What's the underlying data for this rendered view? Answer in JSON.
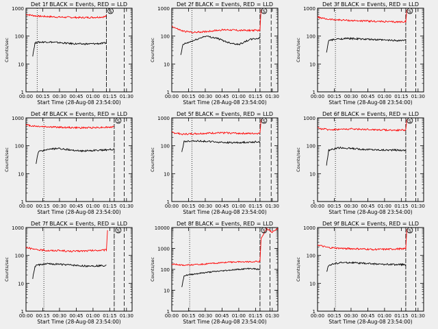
{
  "figure": {
    "xlabel": "Start Time (28-Aug-08 23:54:00)",
    "ylabel": "Counts/sec",
    "xticks": [
      "00:00",
      "00:15",
      "00:30",
      "00:45",
      "01:00",
      "01:15",
      "01:30"
    ],
    "colors": {
      "events": "#000000",
      "lld": "#ff0000",
      "background": "#efefef",
      "axes": "#000000"
    }
  },
  "chart_data": [
    {
      "type": "line",
      "title": "Det 1f BLACK = Events, RED = LLD",
      "log_scale": true,
      "xlim": [
        0,
        95
      ],
      "ylim": [
        1,
        1000
      ],
      "yticks": [
        "1",
        "10",
        "100",
        "1000"
      ],
      "vlines_dotted": [
        10,
        72
      ],
      "vlines_dashed": [
        72,
        88
      ],
      "marker": "S",
      "series": [
        {
          "color": "#ff0000",
          "x": [
            0,
            5,
            10,
            20,
            30,
            40,
            50,
            60,
            70,
            72
          ],
          "y": [
            600,
            560,
            520,
            500,
            480,
            470,
            460,
            470,
            490,
            520
          ]
        },
        {
          "color": "#000000",
          "x": [
            6,
            8,
            10,
            20,
            30,
            40,
            50,
            60,
            70,
            72
          ],
          "y": [
            20,
            55,
            60,
            62,
            58,
            54,
            52,
            53,
            55,
            58
          ]
        }
      ]
    },
    {
      "type": "line",
      "title": "Det 2f BLACK = Events, RED = LLD",
      "log_scale": true,
      "xlim": [
        0,
        95
      ],
      "ylim": [
        1,
        1000
      ],
      "yticks": [
        "1",
        "10",
        "100",
        "1000"
      ],
      "vlines_dotted": [
        18,
        79
      ],
      "vlines_dashed": [
        79,
        89
      ],
      "marker": "S",
      "series": [
        {
          "color": "#ff0000",
          "x": [
            0,
            5,
            10,
            20,
            30,
            40,
            50,
            60,
            70,
            79,
            80
          ],
          "y": [
            230,
            180,
            150,
            135,
            145,
            160,
            170,
            160,
            160,
            160,
            900
          ]
        },
        {
          "color": "#000000",
          "x": [
            8,
            10,
            20,
            30,
            40,
            50,
            60,
            70,
            79
          ],
          "y": [
            20,
            50,
            70,
            100,
            85,
            60,
            50,
            75,
            85
          ]
        }
      ]
    },
    {
      "type": "line",
      "title": "Det 3f BLACK = Events, RED = LLD",
      "log_scale": true,
      "xlim": [
        0,
        95
      ],
      "ylim": [
        1,
        1000
      ],
      "yticks": [
        "1",
        "10",
        "100",
        "1000"
      ],
      "vlines_dotted": [
        16,
        79
      ],
      "vlines_dashed": [
        79,
        88
      ],
      "marker": "S",
      "series": [
        {
          "color": "#ff0000",
          "x": [
            0,
            5,
            10,
            20,
            30,
            40,
            50,
            60,
            70,
            79,
            80
          ],
          "y": [
            480,
            430,
            400,
            380,
            360,
            350,
            340,
            330,
            320,
            330,
            900
          ]
        },
        {
          "color": "#000000",
          "x": [
            8,
            10,
            20,
            30,
            40,
            50,
            60,
            70,
            79
          ],
          "y": [
            25,
            70,
            80,
            82,
            78,
            75,
            72,
            70,
            70
          ]
        }
      ]
    },
    {
      "type": "line",
      "title": "Det 4f BLACK = Events, RED = LLD",
      "log_scale": true,
      "xlim": [
        0,
        95
      ],
      "ylim": [
        1,
        1000
      ],
      "yticks": [
        "1",
        "10",
        "100",
        "1000"
      ],
      "vlines_dotted": [
        16,
        79
      ],
      "vlines_dashed": [
        79,
        88
      ],
      "marker": "S",
      "series": [
        {
          "color": "#ff0000",
          "x": [
            0,
            5,
            10,
            20,
            30,
            40,
            50,
            60,
            70,
            79
          ],
          "y": [
            560,
            520,
            500,
            480,
            460,
            450,
            440,
            450,
            460,
            470
          ]
        },
        {
          "color": "#000000",
          "x": [
            9,
            11,
            20,
            30,
            40,
            50,
            60,
            70,
            79
          ],
          "y": [
            22,
            60,
            75,
            80,
            70,
            65,
            68,
            70,
            75
          ]
        }
      ]
    },
    {
      "type": "line",
      "title": "Det 5f BLACK = Events, RED = LLD",
      "log_scale": true,
      "xlim": [
        0,
        95
      ],
      "ylim": [
        1,
        1000
      ],
      "yticks": [
        "1",
        "10",
        "100",
        "1000"
      ],
      "vlines_dotted": [
        18,
        79
      ],
      "vlines_dashed": [
        79,
        89
      ],
      "marker": "S",
      "series": [
        {
          "color": "#ff0000",
          "x": [
            0,
            5,
            10,
            20,
            30,
            40,
            50,
            60,
            70,
            79,
            80
          ],
          "y": [
            300,
            280,
            260,
            270,
            280,
            290,
            290,
            280,
            275,
            280,
            900
          ]
        },
        {
          "color": "#000000",
          "x": [
            9,
            11,
            20,
            30,
            40,
            50,
            60,
            70,
            79
          ],
          "y": [
            60,
            140,
            150,
            145,
            135,
            130,
            130,
            135,
            140
          ]
        }
      ]
    },
    {
      "type": "line",
      "title": "Det 6f BLACK = Events, RED = LLD",
      "log_scale": true,
      "xlim": [
        0,
        95
      ],
      "ylim": [
        1,
        1000
      ],
      "yticks": [
        "1",
        "10",
        "100",
        "1000"
      ],
      "vlines_dotted": [
        16,
        79
      ],
      "vlines_dashed": [
        79,
        88
      ],
      "marker": "S",
      "series": [
        {
          "color": "#ff0000",
          "x": [
            0,
            5,
            10,
            20,
            30,
            40,
            50,
            60,
            70,
            79,
            80
          ],
          "y": [
            430,
            400,
            380,
            390,
            400,
            390,
            380,
            370,
            360,
            370,
            900
          ]
        },
        {
          "color": "#000000",
          "x": [
            8,
            10,
            20,
            30,
            40,
            50,
            60,
            70,
            79
          ],
          "y": [
            20,
            70,
            85,
            80,
            75,
            72,
            70,
            70,
            68
          ]
        }
      ]
    },
    {
      "type": "line",
      "title": "Det 7f BLACK = Events, RED = LLD",
      "log_scale": true,
      "xlim": [
        0,
        95
      ],
      "ylim": [
        1,
        1000
      ],
      "yticks": [
        "1",
        "10",
        "100",
        "1000"
      ],
      "vlines_dotted": [
        16,
        79
      ],
      "vlines_dashed": [
        79,
        88
      ],
      "marker": "S",
      "series": [
        {
          "color": "#ff0000",
          "x": [
            0,
            5,
            10,
            20,
            30,
            40,
            50,
            60,
            70,
            72,
            73
          ],
          "y": [
            200,
            170,
            160,
            150,
            150,
            140,
            145,
            150,
            155,
            160,
            800
          ]
        },
        {
          "color": "#000000",
          "x": [
            6,
            8,
            10,
            20,
            30,
            40,
            50,
            60,
            70,
            72
          ],
          "y": [
            15,
            40,
            45,
            50,
            48,
            45,
            42,
            42,
            43,
            45
          ]
        }
      ]
    },
    {
      "type": "line",
      "title": "Det 8f BLACK = Events, RED = LLD",
      "log_scale": true,
      "xlim": [
        0,
        95
      ],
      "ylim": [
        1,
        10000
      ],
      "yticks": [
        "1",
        "10",
        "100",
        "1000",
        "10000"
      ],
      "vlines_dotted": [
        16,
        79
      ],
      "vlines_dashed": [
        79,
        88
      ],
      "marker": "S",
      "series": [
        {
          "color": "#ff0000",
          "x": [
            0,
            5,
            10,
            20,
            30,
            40,
            50,
            60,
            70,
            79,
            80,
            85,
            90,
            95
          ],
          "y": [
            180,
            170,
            160,
            165,
            180,
            200,
            220,
            230,
            230,
            240,
            3000,
            9000,
            6000,
            9000
          ]
        },
        {
          "color": "#000000",
          "x": [
            9,
            11,
            20,
            30,
            40,
            50,
            60,
            70,
            79
          ],
          "y": [
            15,
            50,
            60,
            70,
            80,
            90,
            100,
            110,
            100
          ]
        }
      ]
    },
    {
      "type": "line",
      "title": "Det 9f BLACK = Events, RED = LLD",
      "log_scale": true,
      "xlim": [
        0,
        95
      ],
      "ylim": [
        1,
        1000
      ],
      "yticks": [
        "1",
        "10",
        "100",
        "1000"
      ],
      "vlines_dotted": [
        16,
        79
      ],
      "vlines_dashed": [
        79,
        88
      ],
      "marker": "S",
      "series": [
        {
          "color": "#ff0000",
          "x": [
            0,
            5,
            10,
            20,
            30,
            40,
            50,
            60,
            70,
            79,
            80
          ],
          "y": [
            240,
            210,
            190,
            180,
            175,
            170,
            165,
            165,
            170,
            175,
            900
          ]
        },
        {
          "color": "#000000",
          "x": [
            8,
            10,
            20,
            30,
            40,
            50,
            60,
            70,
            79
          ],
          "y": [
            25,
            45,
            55,
            55,
            52,
            50,
            48,
            47,
            47
          ]
        }
      ]
    }
  ]
}
